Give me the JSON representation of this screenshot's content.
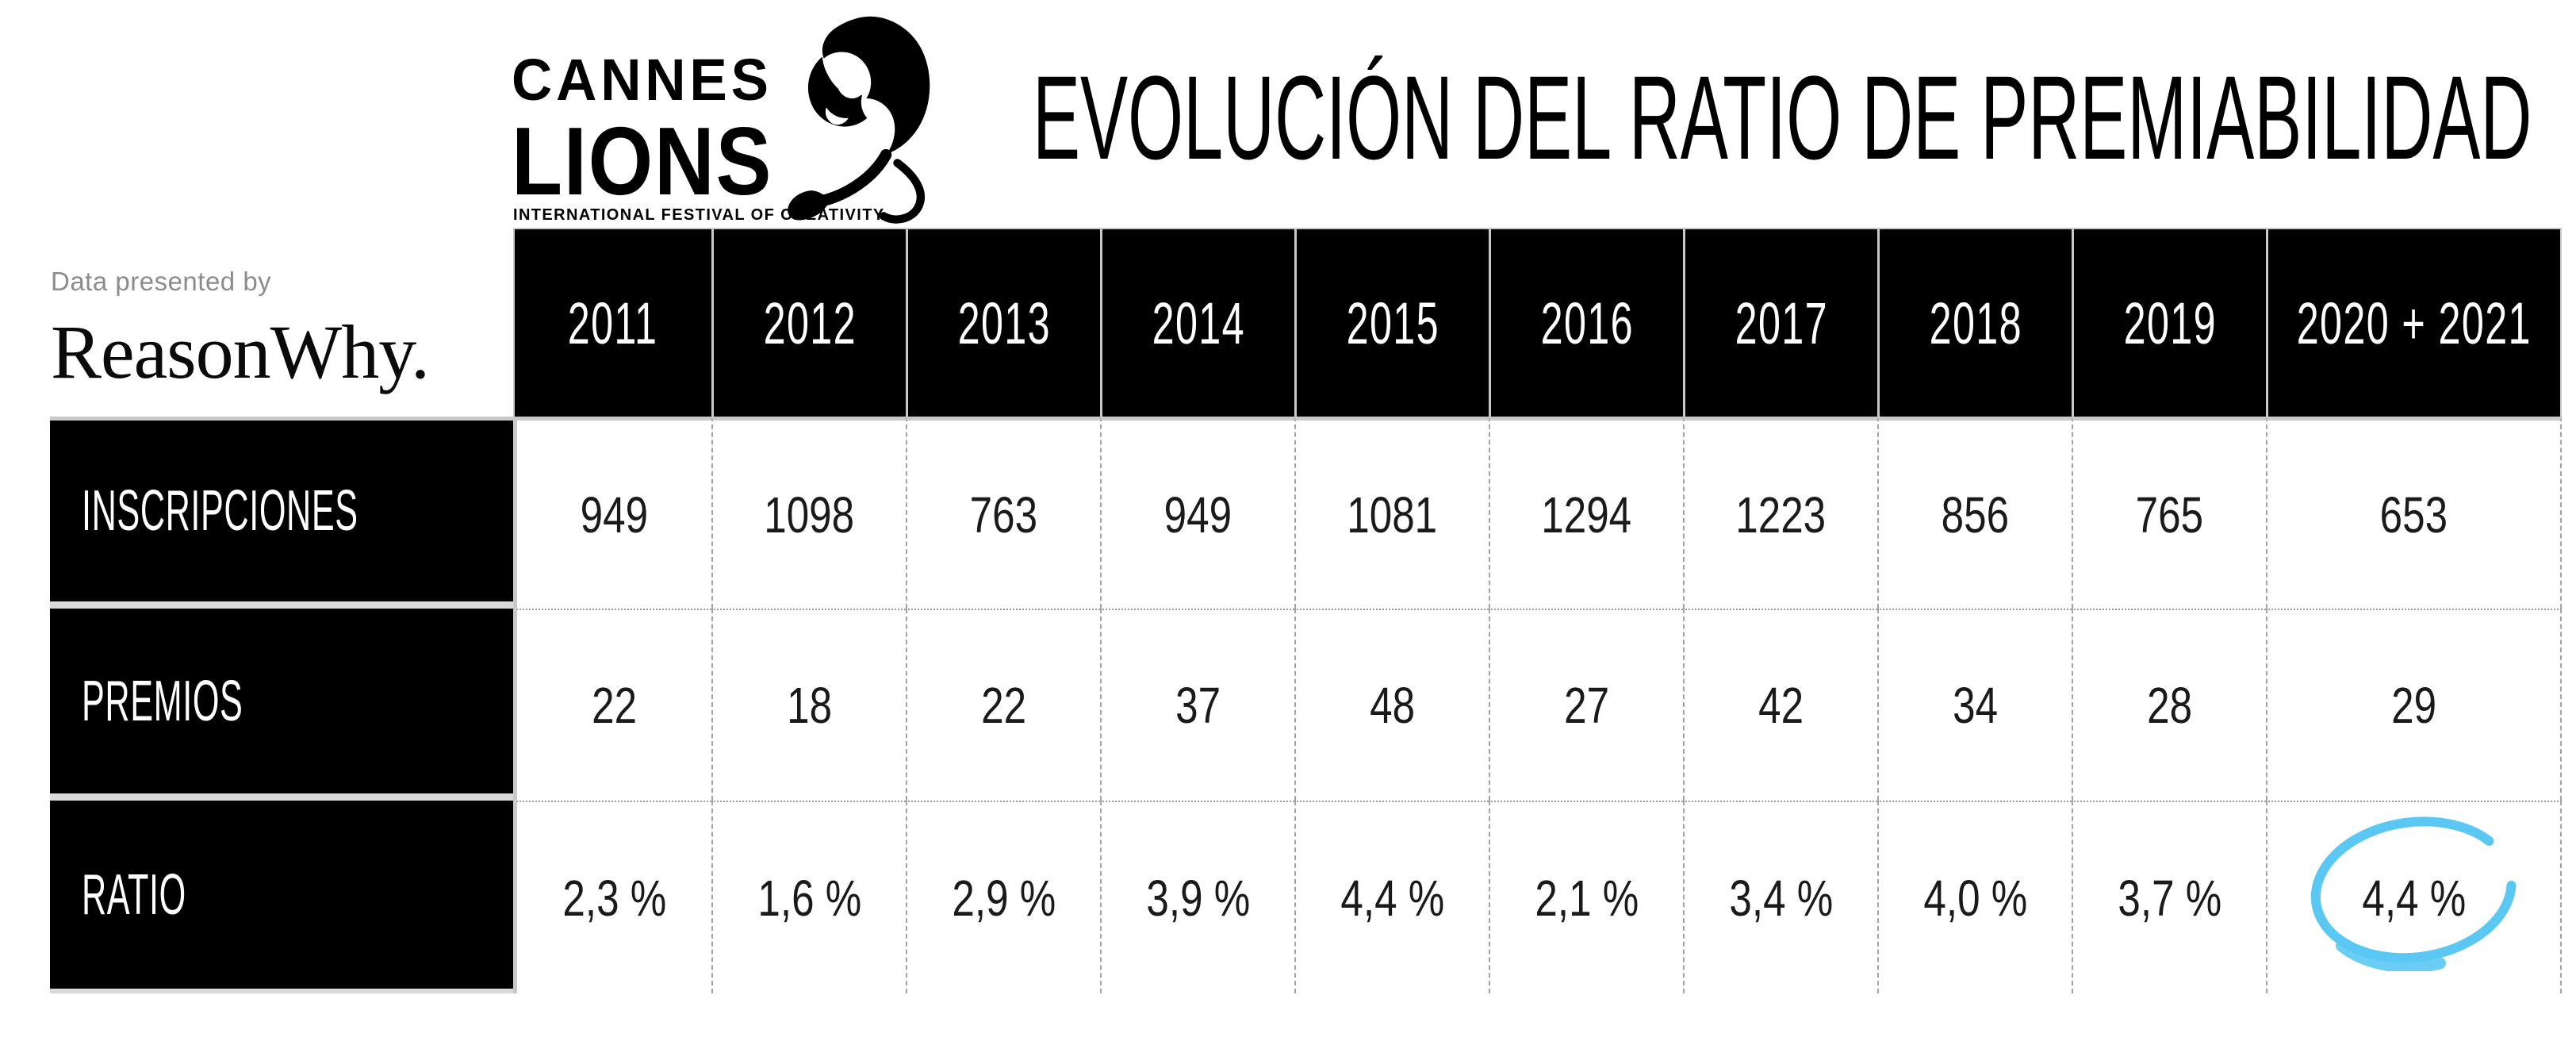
{
  "title": "EVOLUCIÓN DEL RATIO DE PREMIABILIDAD",
  "logo": {
    "line1": "CANNES",
    "line2": "LIONS",
    "tagline": "INTERNATIONAL FESTIVAL OF CREATIVITY",
    "icon": "lion-icon"
  },
  "presented_by": {
    "label": "Data presented by",
    "brand": "ReasonWhy."
  },
  "table": {
    "columns": [
      "2011",
      "2012",
      "2013",
      "2014",
      "2015",
      "2016",
      "2017",
      "2018",
      "2019",
      "2020 + 2021"
    ],
    "rows": [
      {
        "label": "INSCRIPCIONES",
        "values": [
          "949",
          "1098",
          "763",
          "949",
          "1081",
          "1294",
          "1223",
          "856",
          "765",
          "653"
        ]
      },
      {
        "label": "PREMIOS",
        "values": [
          "22",
          "18",
          "22",
          "37",
          "48",
          "27",
          "42",
          "34",
          "28",
          "29"
        ]
      },
      {
        "label": "RATIO",
        "values": [
          "2,3 %",
          "1,6 %",
          "2,9 %",
          "3,9 %",
          "4,4 %",
          "2,1 %",
          "3,4 %",
          "4,0 %",
          "3,7 %",
          "4,4 %"
        ],
        "highlight_index": 9
      }
    ]
  },
  "annotation": {
    "type": "hand-drawn-circle",
    "highlighted_value": "4,4 %",
    "highlighted_column": "2020 + 2021",
    "highlighted_row": "RATIO"
  },
  "colors": {
    "cell_black": "#000000",
    "grid_solid": "#c9c9c9",
    "grid_dashed": "#a3a3a3",
    "grid_dotted": "#9a9a9a",
    "muted_text": "#8c8c8c",
    "accent_circle": "#5AC8F2"
  },
  "chart_data": {
    "type": "table",
    "title": "EVOLUCIÓN DEL RATIO DE PREMIABILIDAD",
    "categories": [
      "2011",
      "2012",
      "2013",
      "2014",
      "2015",
      "2016",
      "2017",
      "2018",
      "2019",
      "2020 + 2021"
    ],
    "series": [
      {
        "name": "INSCRIPCIONES",
        "values": [
          949,
          1098,
          763,
          949,
          1081,
          1294,
          1223,
          856,
          765,
          653
        ]
      },
      {
        "name": "PREMIOS",
        "values": [
          22,
          18,
          22,
          37,
          48,
          27,
          42,
          34,
          28,
          29
        ]
      },
      {
        "name": "RATIO_PERCENT",
        "values": [
          2.3,
          1.6,
          2.9,
          3.9,
          4.4,
          2.1,
          3.4,
          4.0,
          3.7,
          4.4
        ]
      }
    ],
    "annotations": [
      {
        "series": "RATIO_PERCENT",
        "category": "2020 + 2021",
        "value": 4.4,
        "style": "circled",
        "color": "#5AC8F2"
      }
    ]
  }
}
